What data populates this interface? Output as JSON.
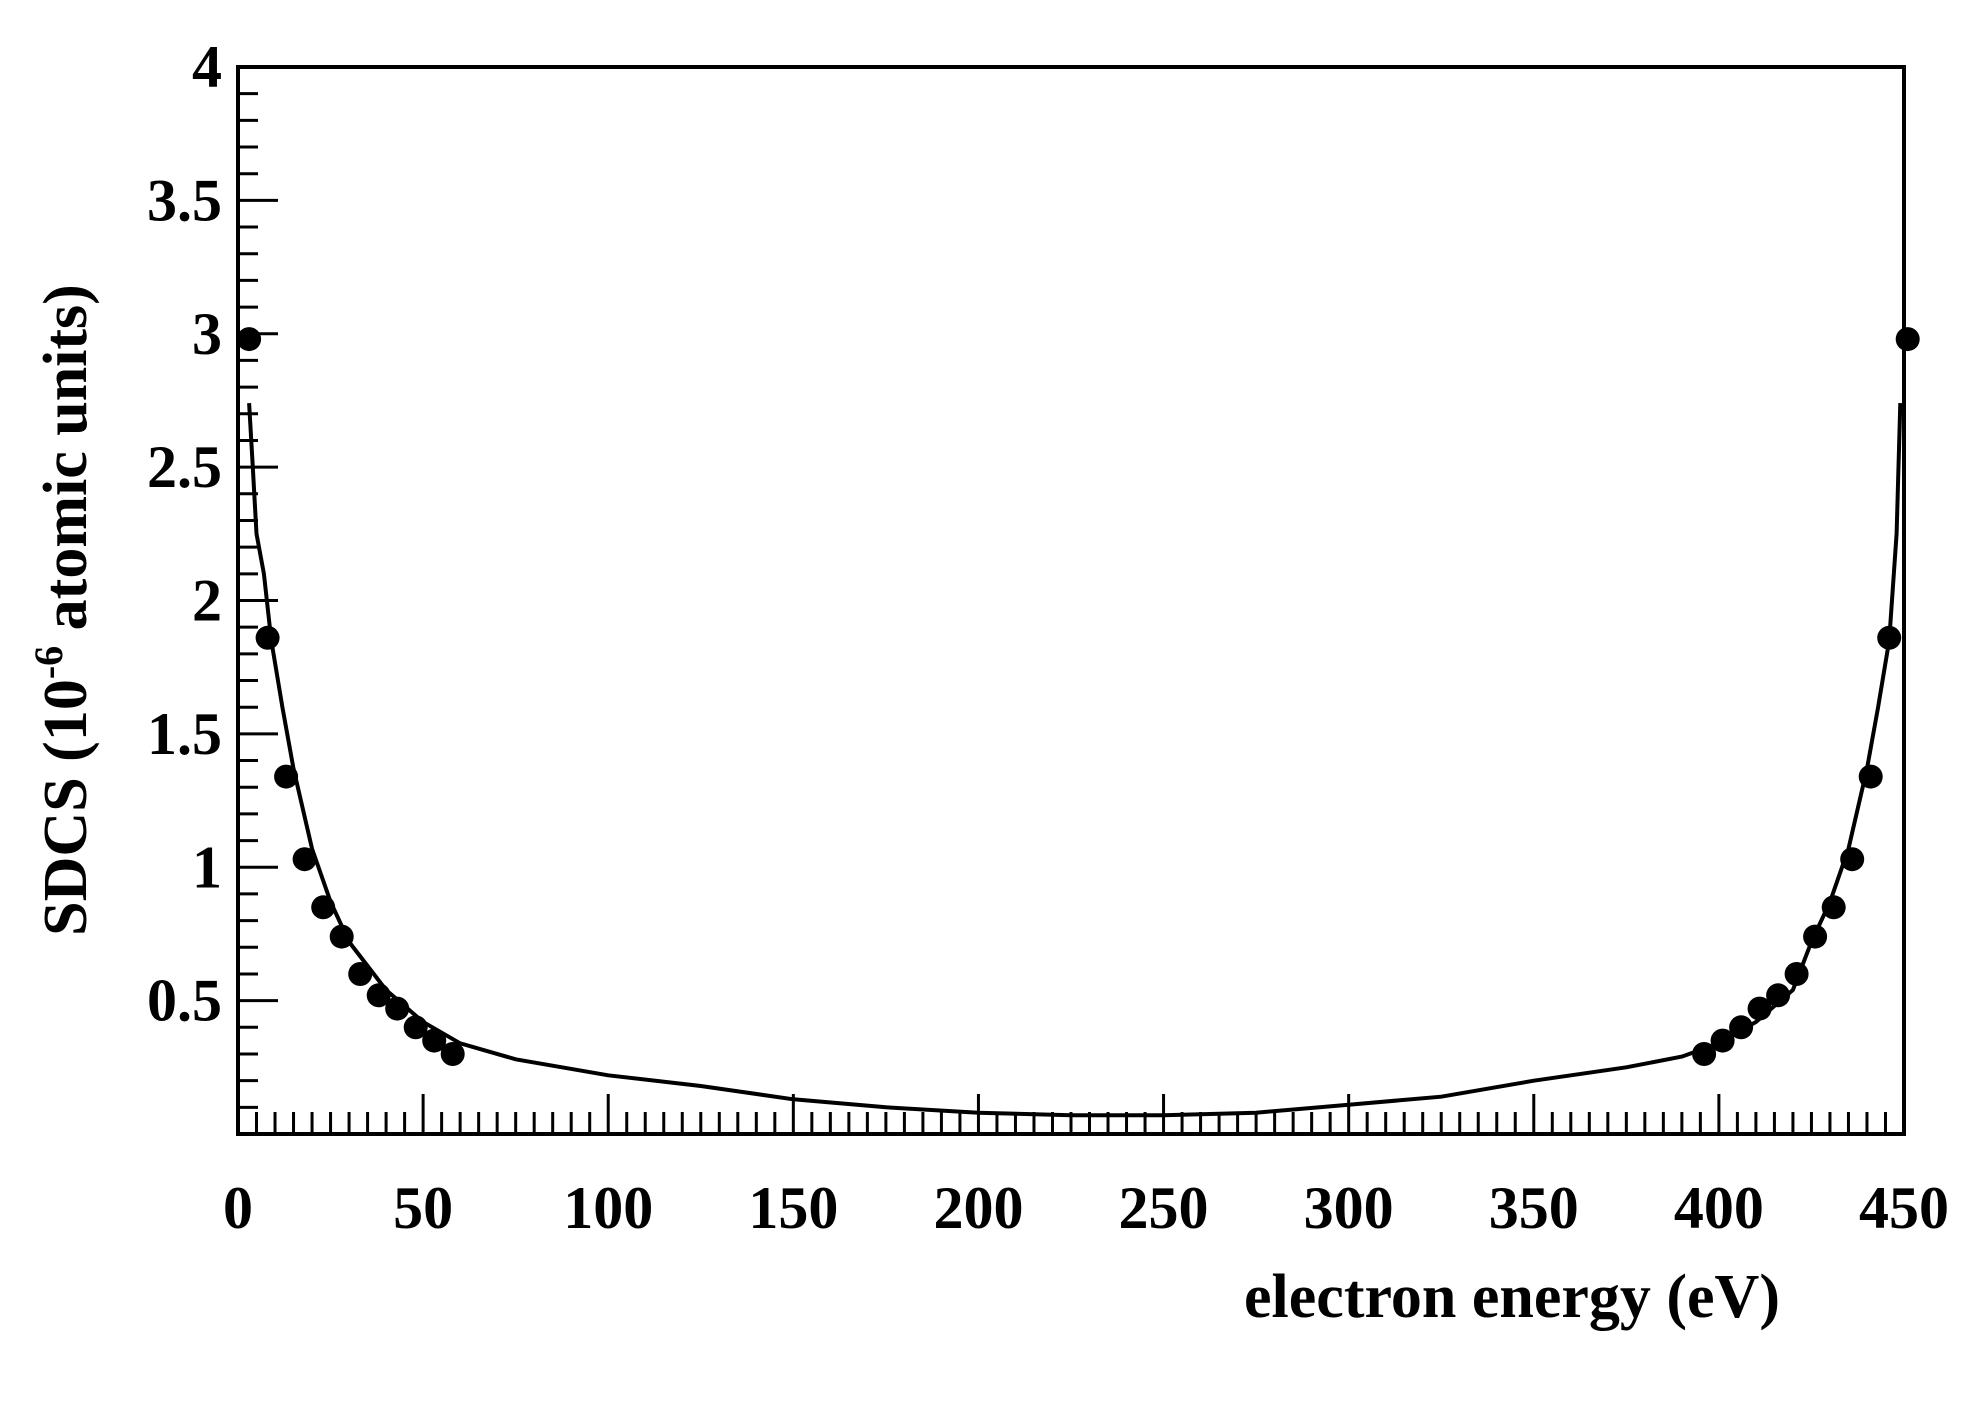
{
  "chart_data": {
    "type": "scatter",
    "title": "",
    "xlabel": "electron energy (eV)",
    "ylabel": {
      "before": "SDCS (10",
      "superscript": "-6",
      "after": " atomic units)"
    },
    "xlim": [
      0,
      450
    ],
    "ylim": [
      0,
      4
    ],
    "x_ticks": [
      0,
      50,
      100,
      150,
      200,
      250,
      300,
      350,
      400,
      450
    ],
    "y_ticks": [
      0.5,
      1,
      1.5,
      2,
      2.5,
      3,
      3.5,
      4
    ],
    "x_tick_labels": [
      "0",
      "50",
      "100",
      "150",
      "200",
      "250",
      "300",
      "350",
      "400",
      "450"
    ],
    "y_tick_labels": [
      "0.5",
      "1",
      "1.5",
      "2",
      "2.5",
      "3",
      "3.5",
      "4"
    ],
    "grid": false,
    "colors": {
      "line": "#000000",
      "points": "#000000"
    },
    "series": [
      {
        "kind": "points",
        "x": [
          3,
          8,
          13,
          18,
          23,
          28,
          33,
          38,
          43,
          48,
          53,
          58,
          396,
          401,
          406,
          411,
          416,
          421,
          426,
          431,
          436,
          441,
          446,
          451
        ],
        "y": [
          2.98,
          1.86,
          1.34,
          1.03,
          0.85,
          0.74,
          0.6,
          0.52,
          0.47,
          0.4,
          0.35,
          0.3,
          0.3,
          0.35,
          0.4,
          0.47,
          0.52,
          0.6,
          0.74,
          0.85,
          1.03,
          1.34,
          1.86,
          2.98
        ]
      },
      {
        "kind": "line",
        "x": [
          3,
          4,
          5,
          7,
          9,
          12,
          15,
          20,
          25,
          30,
          40,
          50,
          60,
          75,
          100,
          125,
          150,
          175,
          200,
          225,
          250,
          275,
          300,
          325,
          350,
          375,
          390,
          400,
          410,
          420,
          425,
          430,
          435,
          440,
          443,
          446,
          448,
          449
        ],
        "y": [
          2.74,
          2.5,
          2.25,
          2.1,
          1.85,
          1.6,
          1.37,
          1.07,
          0.87,
          0.72,
          0.54,
          0.42,
          0.34,
          0.28,
          0.22,
          0.18,
          0.13,
          0.1,
          0.08,
          0.07,
          0.07,
          0.08,
          0.11,
          0.14,
          0.2,
          0.25,
          0.29,
          0.34,
          0.42,
          0.54,
          0.72,
          0.87,
          1.07,
          1.37,
          1.6,
          1.85,
          2.25,
          2.74
        ]
      }
    ]
  }
}
